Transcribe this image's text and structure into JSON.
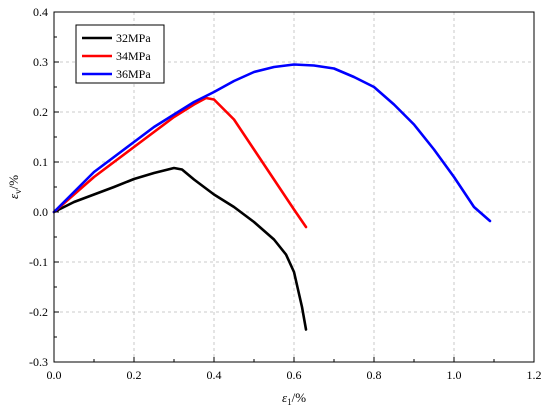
{
  "chart_data": {
    "type": "line",
    "title": "",
    "xlabel": {
      "symbol": "ε",
      "subscript": "1",
      "unit": "/%"
    },
    "ylabel": {
      "symbol": "ε",
      "subscript": "v",
      "unit": "/%"
    },
    "xlim": [
      0.0,
      1.2
    ],
    "ylim": [
      -0.3,
      0.4
    ],
    "xticks": [
      "0.0",
      "0.2",
      "0.4",
      "0.6",
      "0.8",
      "1.0",
      "1.2"
    ],
    "yticks": [
      "-0.3",
      "-0.2",
      "-0.1",
      "0.0",
      "0.1",
      "0.2",
      "0.3",
      "0.4"
    ],
    "grid": true,
    "legend_position": "top-left",
    "series": [
      {
        "name": "32MPa",
        "color": "#000000",
        "x": [
          0.0,
          0.05,
          0.1,
          0.15,
          0.2,
          0.25,
          0.3,
          0.32,
          0.35,
          0.4,
          0.45,
          0.5,
          0.55,
          0.58,
          0.6,
          0.62,
          0.63
        ],
        "y": [
          0.0,
          0.02,
          0.035,
          0.05,
          0.066,
          0.078,
          0.088,
          0.085,
          0.065,
          0.035,
          0.01,
          -0.02,
          -0.055,
          -0.085,
          -0.12,
          -0.19,
          -0.235
        ]
      },
      {
        "name": "34MPa",
        "color": "#ff0000",
        "x": [
          0.0,
          0.05,
          0.1,
          0.15,
          0.2,
          0.25,
          0.3,
          0.35,
          0.38,
          0.4,
          0.45,
          0.5,
          0.55,
          0.6,
          0.63
        ],
        "y": [
          0.0,
          0.035,
          0.07,
          0.1,
          0.13,
          0.16,
          0.19,
          0.215,
          0.228,
          0.225,
          0.185,
          0.125,
          0.065,
          0.005,
          -0.03
        ]
      },
      {
        "name": "36MPa",
        "color": "#0000ff",
        "x": [
          0.0,
          0.05,
          0.1,
          0.15,
          0.2,
          0.25,
          0.3,
          0.35,
          0.4,
          0.45,
          0.5,
          0.55,
          0.6,
          0.65,
          0.7,
          0.75,
          0.8,
          0.85,
          0.9,
          0.95,
          1.0,
          1.05,
          1.09
        ],
        "y": [
          0.0,
          0.04,
          0.08,
          0.11,
          0.14,
          0.17,
          0.195,
          0.22,
          0.24,
          0.262,
          0.28,
          0.29,
          0.295,
          0.293,
          0.287,
          0.27,
          0.25,
          0.215,
          0.175,
          0.125,
          0.07,
          0.01,
          -0.018
        ]
      }
    ]
  }
}
